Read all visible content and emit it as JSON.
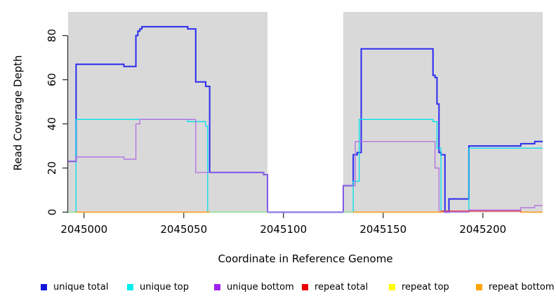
{
  "chart_data": {
    "type": "line",
    "step": true,
    "title": "",
    "xlabel": "Coordinate in Reference Genome",
    "ylabel": "Read Coverage Depth",
    "xlim": [
      2044992,
      2045230
    ],
    "ylim": [
      0,
      90.7
    ],
    "x_ticks": [
      2045000,
      2045050,
      2045100,
      2045150,
      2045200
    ],
    "y_ticks": [
      0,
      20,
      40,
      60,
      80
    ],
    "plot_bg": "#d9d9d9",
    "grid": false,
    "legend_position": "bottom",
    "no_data_gap": [
      2045092,
      2045130
    ],
    "series": [
      {
        "name": "unique total",
        "color": "#2b2bef",
        "width": 2,
        "parts": [
          [
            [
              2044992,
              23
            ],
            [
              2044996,
              67
            ],
            [
              2045020,
              66
            ],
            [
              2045026,
              80
            ],
            [
              2045027,
              82
            ],
            [
              2045028,
              83
            ],
            [
              2045029,
              84
            ],
            [
              2045052,
              83
            ],
            [
              2045056,
              59
            ],
            [
              2045061,
              57
            ],
            [
              2045063,
              18
            ],
            [
              2045090,
              17
            ],
            [
              2045092,
              0
            ],
            [
              2045130,
              12
            ],
            [
              2045135,
              26
            ],
            [
              2045137,
              27
            ],
            [
              2045139,
              74
            ],
            [
              2045175,
              62
            ],
            [
              2045176,
              61
            ],
            [
              2045177,
              49
            ],
            [
              2045178,
              27
            ],
            [
              2045179,
              26
            ],
            [
              2045181,
              0
            ],
            [
              2045183,
              6
            ],
            [
              2045193,
              30
            ],
            [
              2045219,
              31
            ],
            [
              2045226,
              32
            ],
            [
              2045230,
              32
            ]
          ]
        ]
      },
      {
        "name": "unique top",
        "color": "#00e0ea",
        "width": 1.3,
        "parts": [
          [
            [
              2044992,
              0
            ],
            [
              2044996,
              42
            ],
            [
              2045052,
              41
            ],
            [
              2045061,
              39
            ],
            [
              2045062,
              0
            ],
            [
              2045135,
              14
            ],
            [
              2045138,
              42
            ],
            [
              2045175,
              41
            ],
            [
              2045177,
              29
            ],
            [
              2045179,
              0
            ],
            [
              2045193,
              29
            ],
            [
              2045230,
              29
            ]
          ]
        ]
      },
      {
        "name": "unique bottom",
        "color": "#b16fe4",
        "width": 1.3,
        "parts": [
          [
            [
              2044992,
              23
            ],
            [
              2044996,
              25
            ],
            [
              2045020,
              24
            ],
            [
              2045026,
              40
            ],
            [
              2045028,
              42
            ],
            [
              2045056,
              18
            ],
            [
              2045090,
              17
            ],
            [
              2045092,
              0
            ],
            [
              2045130,
              12
            ],
            [
              2045136,
              32
            ],
            [
              2045176,
              20
            ],
            [
              2045178,
              0
            ],
            [
              2045193,
              1
            ],
            [
              2045219,
              2
            ],
            [
              2045226,
              3
            ],
            [
              2045230,
              3
            ]
          ]
        ]
      },
      {
        "name": "repeat total",
        "color": "#e03050",
        "width": 1.3,
        "parts": [
          [
            [
              2044996,
              0
            ],
            [
              2045063,
              0
            ]
          ],
          [
            [
              2045130,
              0
            ],
            [
              2045179,
              0.5
            ],
            [
              2045219,
              0
            ],
            [
              2045230,
              0
            ]
          ]
        ]
      },
      {
        "name": "repeat top",
        "color": "#ffff00",
        "width": 1.3,
        "parts": [
          [
            [
              2044996,
              0
            ],
            [
              2045063,
              0
            ]
          ],
          [
            [
              2045135,
              0
            ],
            [
              2045180,
              0
            ]
          ],
          [
            [
              2045219,
              0
            ],
            [
              2045230,
              0
            ]
          ]
        ]
      },
      {
        "name": "repeat bottom",
        "color": "#ffa020",
        "width": 1.6,
        "parts": [
          [
            [
              2044996,
              0
            ],
            [
              2045063,
              0
            ]
          ],
          [
            [
              2045135,
              0
            ],
            [
              2045180,
              0
            ]
          ],
          [
            [
              2045219,
              0
            ],
            [
              2045230,
              0
            ]
          ]
        ]
      }
    ],
    "overlap_artifacts": {
      "color": "#9bdf9b",
      "width": 1.6,
      "segments": [
        [
          2044992,
          2044996
        ],
        [
          2045063,
          2045092
        ],
        [
          2045130,
          2045135
        ]
      ]
    }
  },
  "legend": {
    "items": [
      {
        "label": "unique total",
        "color": "#1414dc"
      },
      {
        "label": "unique top",
        "color": "#00eeee"
      },
      {
        "label": "unique bottom",
        "color": "#a020f0"
      },
      {
        "label": "repeat total",
        "color": "#ee0000"
      },
      {
        "label": "repeat top",
        "color": "#ffff00"
      },
      {
        "label": "repeat bottom",
        "color": "#ffa500"
      }
    ]
  }
}
